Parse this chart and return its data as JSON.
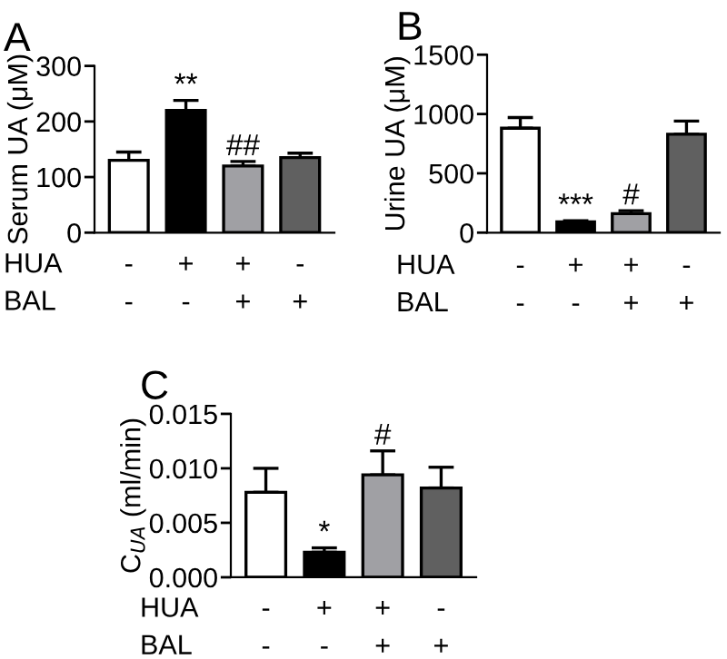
{
  "chart_data": [
    {
      "type": "bar",
      "title": "A",
      "ylabel": "Serum UA (μM)",
      "categories": [
        "-\n-",
        "+\n-",
        "+\n+",
        "-\n+"
      ],
      "values": [
        130,
        220,
        120,
        135
      ],
      "colors": [
        "#ffffff",
        "#000000",
        "#a0a0a4",
        "#606060"
      ],
      "errors": [
        [
          130,
          145
        ],
        [
          220,
          238
        ],
        [
          120,
          128
        ],
        [
          135,
          143
        ]
      ],
      "ylim": [
        0,
        300
      ],
      "yticks": [
        0,
        100,
        200,
        300
      ],
      "annotations": [
        "HUA",
        "BAL",
        {
          "text": "**",
          "x": "+\n-",
          "y": 238
        },
        {
          "text": "##",
          "x": "+\n+",
          "y": 128
        }
      ]
    },
    {
      "type": "bar",
      "title": "B",
      "ylabel": "Urine UA (μM)",
      "categories": [
        "-\n-",
        "+\n-",
        "+\n+",
        "-\n+"
      ],
      "values": [
        880,
        90,
        160,
        830
      ],
      "colors": [
        "#ffffff",
        "#000000",
        "#a0a0a4",
        "#606060"
      ],
      "errors": [
        [
          880,
          970
        ],
        [
          90,
          100
        ],
        [
          160,
          185
        ],
        [
          830,
          940
        ]
      ],
      "ylim": [
        0,
        1500
      ],
      "yticks": [
        0,
        500,
        1000,
        1500
      ],
      "annotations": [
        "HUA",
        "BAL",
        {
          "text": "***",
          "x": "+\n-",
          "y": 100
        },
        {
          "text": "#",
          "x": "+\n+",
          "y": 185
        }
      ]
    },
    {
      "type": "bar",
      "title": "C",
      "ylabel": "C$_{UA}$ (ml/min)",
      "categories": [
        "-\n-",
        "+\n-",
        "+\n+",
        "-\n+"
      ],
      "values": [
        0.0078,
        0.0023,
        0.0094,
        0.0082
      ],
      "colors": [
        "#ffffff",
        "#000000",
        "#a0a0a4",
        "#606060"
      ],
      "errors": [
        [
          0.0078,
          0.01
        ],
        [
          0.0023,
          0.0027
        ],
        [
          0.0094,
          0.0116
        ],
        [
          0.0082,
          0.0101
        ]
      ],
      "ylim": [
        0,
        0.015
      ],
      "yticks": [
        {
          "value": 0,
          "label": "0.000"
        },
        {
          "value": 0.005,
          "label": "0.005"
        },
        {
          "value": 0.01,
          "label": "0.010"
        },
        {
          "value": 0.015,
          "label": "0.015"
        }
      ],
      "annotations": [
        "HUA",
        "BAL",
        {
          "text": "*",
          "x": "+\n-",
          "y": 0.0027
        },
        {
          "text": "#",
          "x": "+\n+",
          "y": 0.0116
        }
      ]
    }
  ]
}
